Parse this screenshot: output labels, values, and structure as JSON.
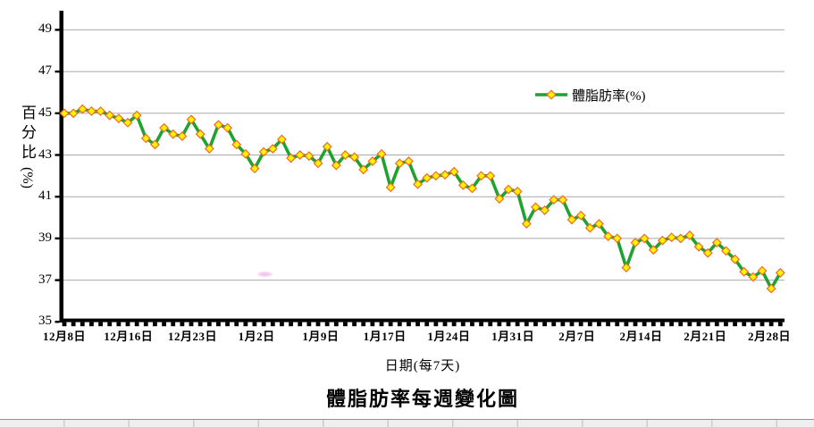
{
  "window": {
    "background": "#ffffff"
  },
  "chart": {
    "title": "體脂肪率每週變化圖",
    "x_axis_caption": "日期(每7天)",
    "y_axis_title_chars": "百分比",
    "y_axis_title_unit": "(%)",
    "legend_label": "體脂肪率(%)"
  },
  "chart_data": {
    "type": "line",
    "title": "體脂肪率每週變化圖",
    "xlabel": "日期(每7天)",
    "ylabel": "百分比(%)",
    "legend_position": "inside-top-right",
    "grid": true,
    "ylim": [
      35,
      49
    ],
    "y_ticks": [
      35,
      37,
      39,
      41,
      43,
      45,
      47,
      49
    ],
    "x_tick_labels": [
      "12月8日",
      "12月16日",
      "12月23日",
      "1月2日",
      "1月9日",
      "1月17日",
      "1月24日",
      "1月31日",
      "2月7日",
      "2月14日",
      "2月21日",
      "2月28日"
    ],
    "series": [
      {
        "name": "體脂肪率(%)",
        "values": [
          45.0,
          45.0,
          45.2,
          45.1,
          45.1,
          44.9,
          44.75,
          44.55,
          44.9,
          43.8,
          43.5,
          44.3,
          44.0,
          43.9,
          44.7,
          44.0,
          43.3,
          44.45,
          44.3,
          43.5,
          43.05,
          42.35,
          43.15,
          43.3,
          43.75,
          42.85,
          43.0,
          42.95,
          42.6,
          43.4,
          42.5,
          43.0,
          42.9,
          42.3,
          42.7,
          43.05,
          41.45,
          42.6,
          42.7,
          41.6,
          41.9,
          42.0,
          42.05,
          42.2,
          41.55,
          41.4,
          42.0,
          42.0,
          40.9,
          41.35,
          41.25,
          39.7,
          40.5,
          40.35,
          40.85,
          40.85,
          39.9,
          40.1,
          39.5,
          39.7,
          39.1,
          39.0,
          37.6,
          38.8,
          39.0,
          38.45,
          38.9,
          39.05,
          39.0,
          39.15,
          38.6,
          38.3,
          38.8,
          38.4,
          38.0,
          37.4,
          37.15,
          37.45,
          36.6,
          37.35
        ]
      }
    ],
    "colors": {
      "line": "#1fa22f",
      "marker_fill": "#fff200",
      "marker_border": "#ef6b28",
      "gridline": "#a8a8a8",
      "axis": "#000000"
    }
  }
}
